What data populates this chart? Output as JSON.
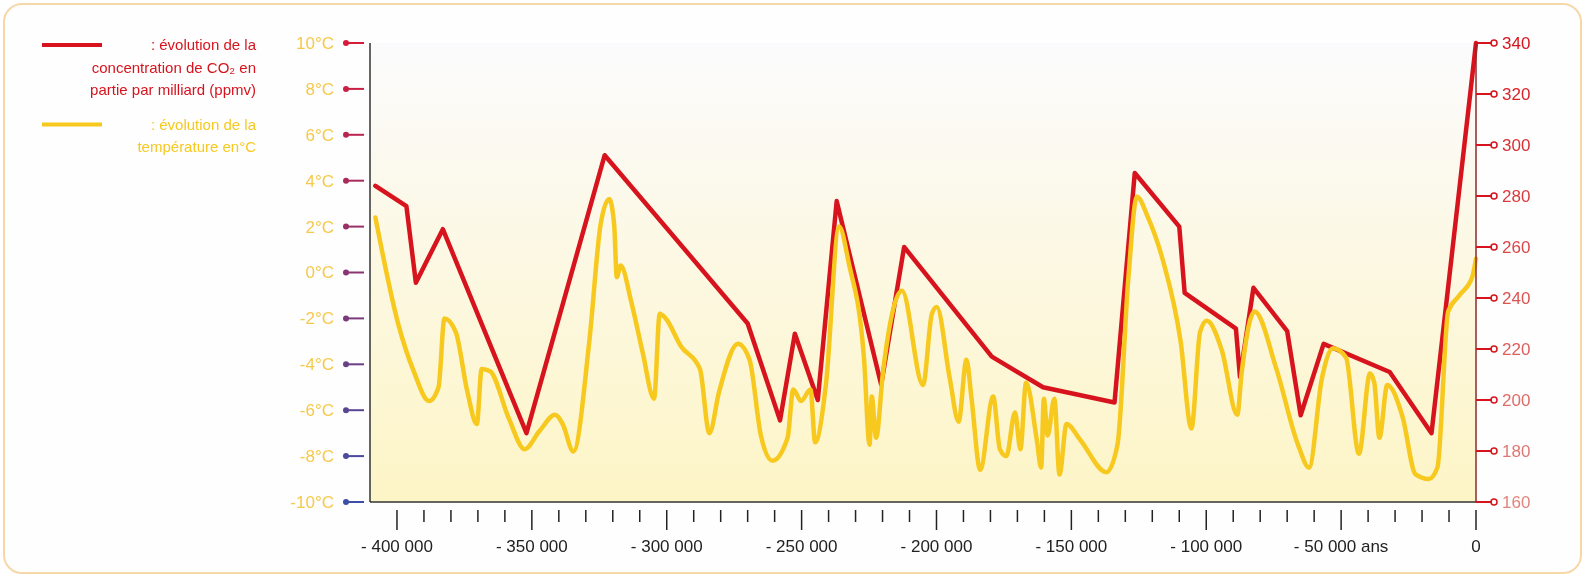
{
  "chart_data": {
    "type": "line",
    "legend": "top left",
    "xlim": [
      -410000,
      0
    ],
    "xticks": [
      {
        "value": -400000,
        "label": "- 400 000"
      },
      {
        "value": -390000,
        "label": null
      },
      {
        "value": -380000,
        "label": null
      },
      {
        "value": -370000,
        "label": null
      },
      {
        "value": -360000,
        "label": null
      },
      {
        "value": -350000,
        "label": "- 350 000"
      },
      {
        "value": -340000,
        "label": null
      },
      {
        "value": -330000,
        "label": null
      },
      {
        "value": -320000,
        "label": null
      },
      {
        "value": -310000,
        "label": null
      },
      {
        "value": -300000,
        "label": "- 300 000"
      },
      {
        "value": -290000,
        "label": null
      },
      {
        "value": -280000,
        "label": null
      },
      {
        "value": -270000,
        "label": null
      },
      {
        "value": -260000,
        "label": null
      },
      {
        "value": -250000,
        "label": "- 250 000"
      },
      {
        "value": -240000,
        "label": null
      },
      {
        "value": -230000,
        "label": null
      },
      {
        "value": -220000,
        "label": null
      },
      {
        "value": -210000,
        "label": null
      },
      {
        "value": -200000,
        "label": "- 200 000"
      },
      {
        "value": -190000,
        "label": null
      },
      {
        "value": -180000,
        "label": null
      },
      {
        "value": -170000,
        "label": null
      },
      {
        "value": -160000,
        "label": null
      },
      {
        "value": -150000,
        "label": "- 150 000"
      },
      {
        "value": -140000,
        "label": null
      },
      {
        "value": -130000,
        "label": null
      },
      {
        "value": -120000,
        "label": null
      },
      {
        "value": -110000,
        "label": null
      },
      {
        "value": -100000,
        "label": "- 100 000"
      },
      {
        "value": -90000,
        "label": null
      },
      {
        "value": -80000,
        "label": null
      },
      {
        "value": -70000,
        "label": null
      },
      {
        "value": -60000,
        "label": null
      },
      {
        "value": -50000,
        "label": "- 50 000 ans"
      },
      {
        "value": -40000,
        "label": null
      },
      {
        "value": -30000,
        "label": null
      },
      {
        "value": -20000,
        "label": null
      },
      {
        "value": -10000,
        "label": null
      },
      {
        "value": 0,
        "label": "0"
      }
    ],
    "ylim": [
      -10,
      10
    ],
    "yticks": [
      {
        "value": -10,
        "label": "-10°C"
      },
      {
        "value": -8,
        "label": "-8°C"
      },
      {
        "value": -6,
        "label": "-6°C"
      },
      {
        "value": -4,
        "label": "-4°C"
      },
      {
        "value": -2,
        "label": "-2°C"
      },
      {
        "value": 0,
        "label": "0°C"
      },
      {
        "value": 2,
        "label": "2°C"
      },
      {
        "value": 4,
        "label": "4°C"
      },
      {
        "value": 6,
        "label": "6°C"
      },
      {
        "value": 8,
        "label": "8°C"
      },
      {
        "value": 10,
        "label": "10°C"
      }
    ],
    "y2lim": [
      160,
      340
    ],
    "y2ticks": [
      160,
      180,
      200,
      220,
      240,
      260,
      280,
      300,
      320,
      340
    ],
    "series": [
      {
        "name": ": évolution de la concentration de CO₂ en partie par milliard (ppmv)",
        "color": "#d7141e",
        "axis": "y2",
        "x": [
          -408000,
          -396500,
          -393000,
          -383000,
          -352000,
          -323000,
          -270000,
          -258000,
          -252500,
          -244000,
          -237000,
          -220500,
          -212000,
          -179500,
          -160500,
          -134000,
          -126500,
          -110000,
          -108000,
          -89000,
          -87500,
          -82500,
          -70000,
          -65000,
          -56500,
          -32000,
          -16500,
          0
        ],
        "values": [
          284,
          276,
          246,
          267,
          187,
          296,
          230,
          192,
          226,
          200,
          278,
          206,
          260,
          217,
          205,
          199,
          289,
          268,
          242,
          228,
          209,
          244,
          227,
          194,
          222,
          211,
          187,
          340
        ]
      },
      {
        "name": ": évolution de la température en°C",
        "color": "#f7c91e",
        "x": [
          -408000,
          -399400,
          -393800,
          -388100,
          -384600,
          -382400,
          -378200,
          -373900,
          -370400,
          -368600,
          -365500,
          -358400,
          -352700,
          -347100,
          -341400,
          -338600,
          -334600,
          -328700,
          -324500,
          -321300,
          -319500,
          -318500,
          -317100,
          -313100,
          -308900,
          -304700,
          -302600,
          -300400,
          -294800,
          -287700,
          -284200,
          -280600,
          -273600,
          -269300,
          -265100,
          -260800,
          -255200,
          -253100,
          -250200,
          -246700,
          -245000,
          -241000,
          -236100,
          -232500,
          -226900,
          -224800,
          -224000,
          -222400,
          -219800,
          -212800,
          -205000,
          -201700,
          -199900,
          -195100,
          -191800,
          -188900,
          -187000,
          -183800,
          -179000,
          -176500,
          -174100,
          -170900,
          -168900,
          -166800,
          -162800,
          -161200,
          -160200,
          -158800,
          -156300,
          -154400,
          -151800,
          -146700,
          -137000,
          -132900,
          -128900,
          -125700,
          -121600,
          -116000,
          -109500,
          -105500,
          -102300,
          -99800,
          -94200,
          -88500,
          -86900,
          -82100,
          -74000,
          -66000,
          -61900,
          -57100,
          -53000,
          -48200,
          -43400,
          -39300,
          -37700,
          -35800,
          -32900,
          -27200,
          -22400,
          -17500,
          -14300,
          -10300,
          -6200,
          -1400,
          0
        ],
        "values": [
          2.4,
          -2.3,
          -4.3,
          -5.6,
          -5.0,
          -2.0,
          -2.6,
          -5.2,
          -6.6,
          -4.2,
          -4.3,
          -6.4,
          -7.7,
          -6.9,
          -6.2,
          -6.6,
          -7.8,
          -3.0,
          2.1,
          3.2,
          2.1,
          -0.2,
          0.3,
          -1.3,
          -3.5,
          -5.5,
          -1.8,
          -2.0,
          -3.2,
          -4.2,
          -7.0,
          -5.2,
          -3.1,
          -3.8,
          -7.1,
          -8.2,
          -7.2,
          -5.1,
          -5.6,
          -5.1,
          -7.4,
          -4.9,
          2.0,
          0.4,
          -3.7,
          -7.5,
          -5.4,
          -7.2,
          -4.3,
          -0.8,
          -4.9,
          -1.8,
          -1.5,
          -4.6,
          -6.5,
          -3.8,
          -5.5,
          -8.6,
          -5.4,
          -7.7,
          -8.0,
          -6.1,
          -7.7,
          -4.8,
          -7.3,
          -8.5,
          -5.5,
          -7.1,
          -5.5,
          -8.8,
          -6.6,
          -7.3,
          -8.7,
          -7.5,
          -0.3,
          3.3,
          2.4,
          0.5,
          -3.0,
          -6.8,
          -2.6,
          -2.1,
          -3.4,
          -6.2,
          -4.4,
          -1.7,
          -4.2,
          -7.5,
          -8.5,
          -4.6,
          -3.3,
          -3.7,
          -7.9,
          -4.4,
          -4.8,
          -7.2,
          -4.9,
          -6.3,
          -8.8,
          -9.0,
          -8.5,
          -1.7,
          -1.0,
          -0.2,
          0.6
        ]
      }
    ]
  }
}
